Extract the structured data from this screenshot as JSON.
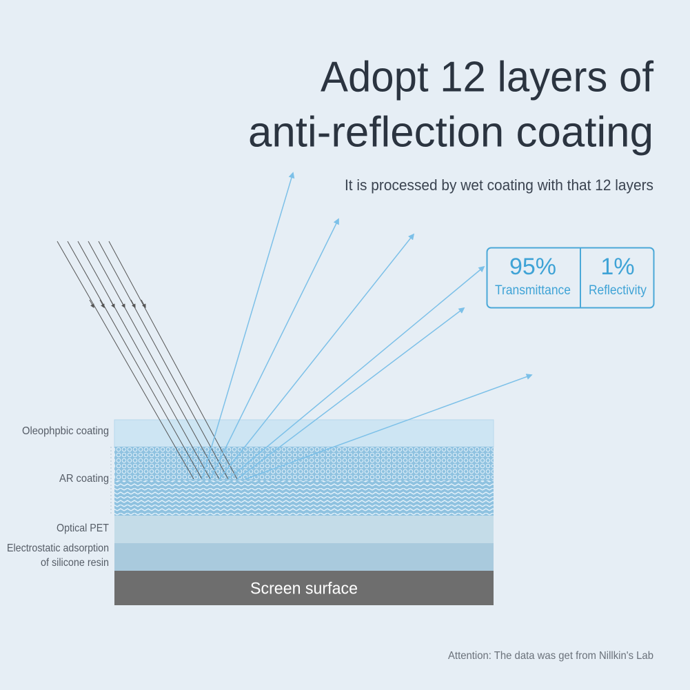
{
  "header": {
    "title_lines": [
      "Adopt 12 layers of",
      "anti-reflection coating"
    ],
    "subtitle": "It is processed by wet coating with that 12 layers"
  },
  "stats": [
    {
      "value": "95%",
      "label": "Transmittance"
    },
    {
      "value": "1%",
      "label": "Reflectivity"
    }
  ],
  "layers": [
    {
      "label": "Oleophpbic coating"
    },
    {
      "label": "AR coating"
    },
    {
      "label": "Optical PET"
    },
    {
      "label_lines": [
        "Electrostatic adsorption",
        "of silicone resin"
      ]
    }
  ],
  "screen": "Screen surface",
  "footer": "Attention: The data was get from Nillkin's Lab"
}
